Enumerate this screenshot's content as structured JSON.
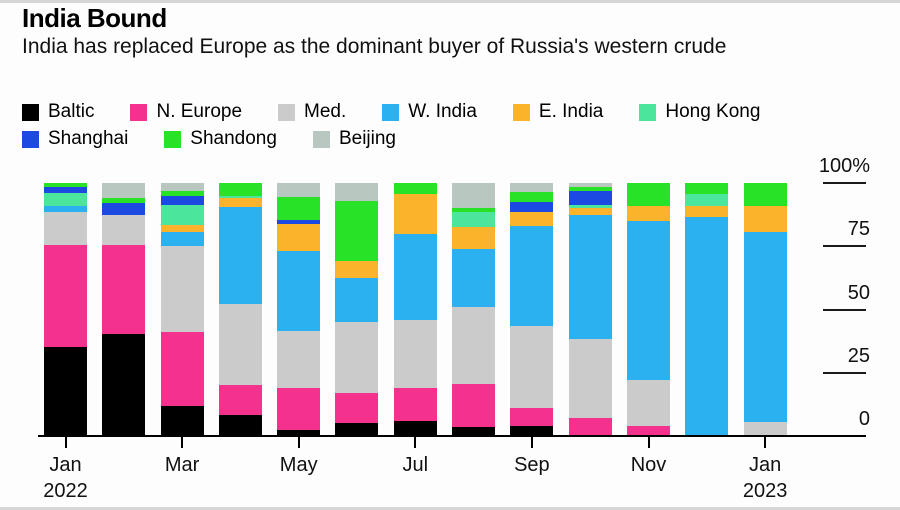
{
  "header": {
    "title": "India Bound",
    "subtitle": "India has replaced Europe as the dominant buyer of Russia's western crude"
  },
  "colors": {
    "background": "#fdfdfd",
    "axis": "#000000",
    "text": "#111111"
  },
  "legend": {
    "rows": [
      [
        "Baltic",
        "N. Europe",
        "Med.",
        "W. India",
        "E. India",
        "Hong Kong"
      ],
      [
        "Shanghai",
        "Shandong",
        "Beijing"
      ]
    ]
  },
  "chart_data": {
    "type": "bar",
    "stacked": true,
    "unit": "percent",
    "title": "India Bound",
    "xlabel": "",
    "ylabel": "",
    "ylim": [
      0,
      100
    ],
    "grid": false,
    "legend_position": "top",
    "categories": [
      "Jan 2022",
      "Feb 2022",
      "Mar 2022",
      "Apr 2022",
      "May 2022",
      "Jun 2022",
      "Jul 2022",
      "Aug 2022",
      "Sep 2022",
      "Oct 2022",
      "Nov 2022",
      "Dec 2022",
      "Jan 2023"
    ],
    "series": [
      {
        "name": "Baltic",
        "color": "#000000",
        "values": [
          35,
          40.5,
          12,
          8.5,
          2.5,
          5,
          6,
          3.5,
          4,
          0,
          0,
          0,
          0
        ]
      },
      {
        "name": "N. Europe",
        "color": "#f5318e",
        "values": [
          40.5,
          35,
          29,
          11.5,
          16.5,
          12,
          13,
          17,
          7,
          7,
          4,
          0,
          0
        ]
      },
      {
        "name": "Med.",
        "color": "#cbcbcb",
        "values": [
          13,
          12,
          34,
          32,
          22.5,
          28,
          27,
          30.5,
          32.5,
          31.5,
          18,
          0,
          5.5
        ]
      },
      {
        "name": "W. India",
        "color": "#2bb1f0",
        "values": [
          2.5,
          0,
          5.5,
          38.5,
          31.5,
          17.5,
          34,
          23,
          39.5,
          49,
          63,
          86.5,
          75
        ]
      },
      {
        "name": "E. India",
        "color": "#fbb32b",
        "values": [
          0,
          0,
          3,
          3.5,
          11,
          6.5,
          15.5,
          8.5,
          5.5,
          2.5,
          6,
          4.5,
          10.5
        ]
      },
      {
        "name": "Hong Kong",
        "color": "#4be69c",
        "values": [
          5,
          0,
          8,
          1,
          0,
          0,
          0,
          6,
          0,
          1.5,
          0,
          4.5,
          0
        ]
      },
      {
        "name": "Shanghai",
        "color": "#1d49e3",
        "values": [
          2.5,
          4.5,
          3.5,
          0,
          1.5,
          0,
          0,
          0,
          4,
          5.5,
          0,
          0,
          0
        ]
      },
      {
        "name": "Shandong",
        "color": "#27e227",
        "values": [
          1.5,
          2,
          2,
          5,
          9,
          24,
          4.5,
          1.5,
          4,
          1.5,
          9,
          4.5,
          9
        ]
      },
      {
        "name": "Beijing",
        "color": "#b8c7c0",
        "values": [
          0,
          6,
          3,
          0,
          5.5,
          7,
          0,
          10,
          3.5,
          1.5,
          0,
          0,
          0
        ]
      }
    ],
    "y_ticks": [
      {
        "label": "100%",
        "value": 100
      },
      {
        "label": "75",
        "value": 75
      },
      {
        "label": "50",
        "value": 50
      },
      {
        "label": "25",
        "value": 25
      },
      {
        "label": "0",
        "value": 0
      }
    ],
    "x_ticks": [
      {
        "index": 0,
        "lines": [
          "Jan",
          "2022"
        ]
      },
      {
        "index": 2,
        "lines": [
          "Mar"
        ]
      },
      {
        "index": 4,
        "lines": [
          "May"
        ]
      },
      {
        "index": 6,
        "lines": [
          "Jul"
        ]
      },
      {
        "index": 8,
        "lines": [
          "Sep"
        ]
      },
      {
        "index": 10,
        "lines": [
          "Nov"
        ]
      },
      {
        "index": 12,
        "lines": [
          "Jan",
          "2023"
        ]
      }
    ]
  }
}
